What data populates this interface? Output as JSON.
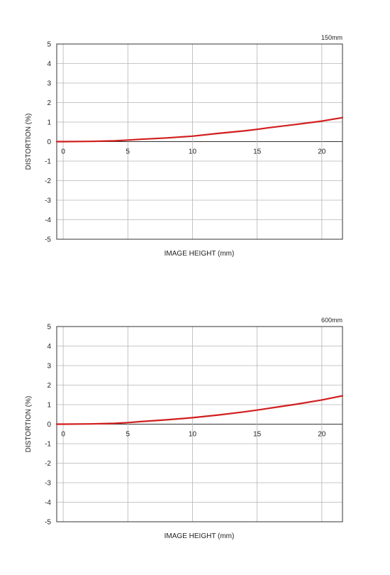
{
  "chart_data": [
    {
      "type": "line",
      "title": "150mm",
      "xlabel": "IMAGE HEIGHT (mm)",
      "ylabel": "DISTORTION (%)",
      "xlim": [
        -0.5,
        21.6
      ],
      "ylim": [
        -5,
        5
      ],
      "xticks": [
        0,
        5,
        10,
        15,
        20
      ],
      "yticks": [
        5,
        4,
        3,
        2,
        1,
        0,
        -1,
        -2,
        -3,
        -4,
        -5
      ],
      "grid": true,
      "line_color": "#d21e1e",
      "series": [
        {
          "x": [
            -0.5,
            0,
            2,
            4,
            5,
            6,
            8,
            10,
            12,
            14,
            15,
            16,
            18,
            20,
            21.6
          ],
          "values": [
            0,
            0,
            0.01,
            0.04,
            0.08,
            0.12,
            0.19,
            0.28,
            0.42,
            0.55,
            0.63,
            0.72,
            0.88,
            1.05,
            1.23
          ]
        }
      ]
    },
    {
      "type": "line",
      "title": "600mm",
      "xlabel": "IMAGE HEIGHT (mm)",
      "ylabel": "DISTORTION (%)",
      "xlim": [
        -0.5,
        21.6
      ],
      "ylim": [
        -5,
        5
      ],
      "xticks": [
        0,
        5,
        10,
        15,
        20
      ],
      "yticks": [
        5,
        4,
        3,
        2,
        1,
        0,
        -1,
        -2,
        -3,
        -4,
        -5
      ],
      "grid": true,
      "line_color": "#d21e1e",
      "series": [
        {
          "x": [
            -0.5,
            0,
            2,
            4,
            5,
            6,
            8,
            10,
            12,
            14,
            15,
            16,
            18,
            20,
            21.6
          ],
          "values": [
            0,
            0,
            0.01,
            0.04,
            0.08,
            0.13,
            0.22,
            0.33,
            0.47,
            0.63,
            0.72,
            0.82,
            1.02,
            1.24,
            1.45
          ]
        }
      ]
    }
  ]
}
